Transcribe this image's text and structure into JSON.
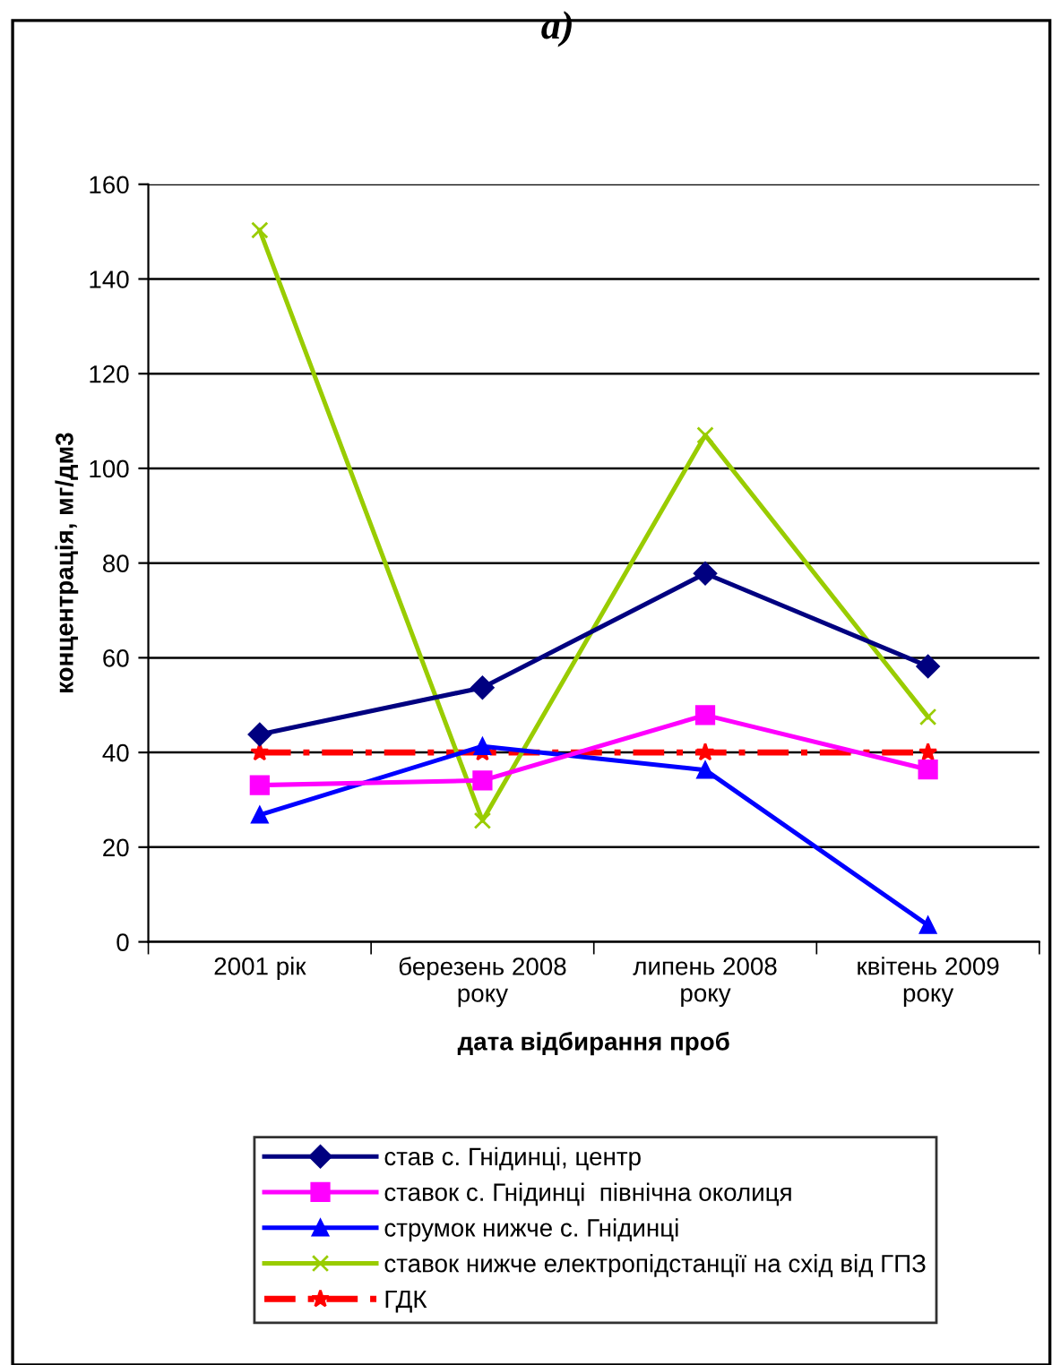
{
  "chart_data": {
    "type": "line",
    "title": "а)",
    "xlabel": "дата відбирання проб",
    "ylabel": "концентрація, мг/дм3",
    "categories": [
      "2001 рік",
      "березень 2008\nроку",
      "липень 2008\nроку",
      "квітень 2009\nроку"
    ],
    "ylim": [
      0,
      160
    ],
    "yticks": [
      0,
      20,
      40,
      60,
      80,
      100,
      120,
      140,
      160
    ],
    "grid": "y",
    "legend": "bottom",
    "series": [
      {
        "name": "став с. Гнідинці, центр",
        "color": "#000080",
        "marker": "diamond",
        "line_style": "solid",
        "values": [
          43.8,
          53.7,
          77.8,
          58.2
        ]
      },
      {
        "name": "ставок с. Гнідинці  північна околиця",
        "color": "#ff00ff",
        "marker": "square",
        "line_style": "solid",
        "values": [
          33.1,
          34.1,
          47.9,
          36.4
        ]
      },
      {
        "name": "струмок нижче с. Гнідинці",
        "color": "#0000ff",
        "marker": "triangle",
        "line_style": "solid",
        "values": [
          26.8,
          41.3,
          36.3,
          3.5
        ]
      },
      {
        "name": "ставок нижче електропідстанції на схід від ГПЗ",
        "color": "#99cc00",
        "marker": "cross",
        "line_style": "solid",
        "values": [
          150.3,
          25.6,
          107.0,
          47.5
        ]
      },
      {
        "name": "ГДК",
        "color": "#ff0000",
        "marker": "star",
        "line_style": "dashed",
        "values": [
          40,
          40,
          40,
          40
        ]
      }
    ]
  }
}
